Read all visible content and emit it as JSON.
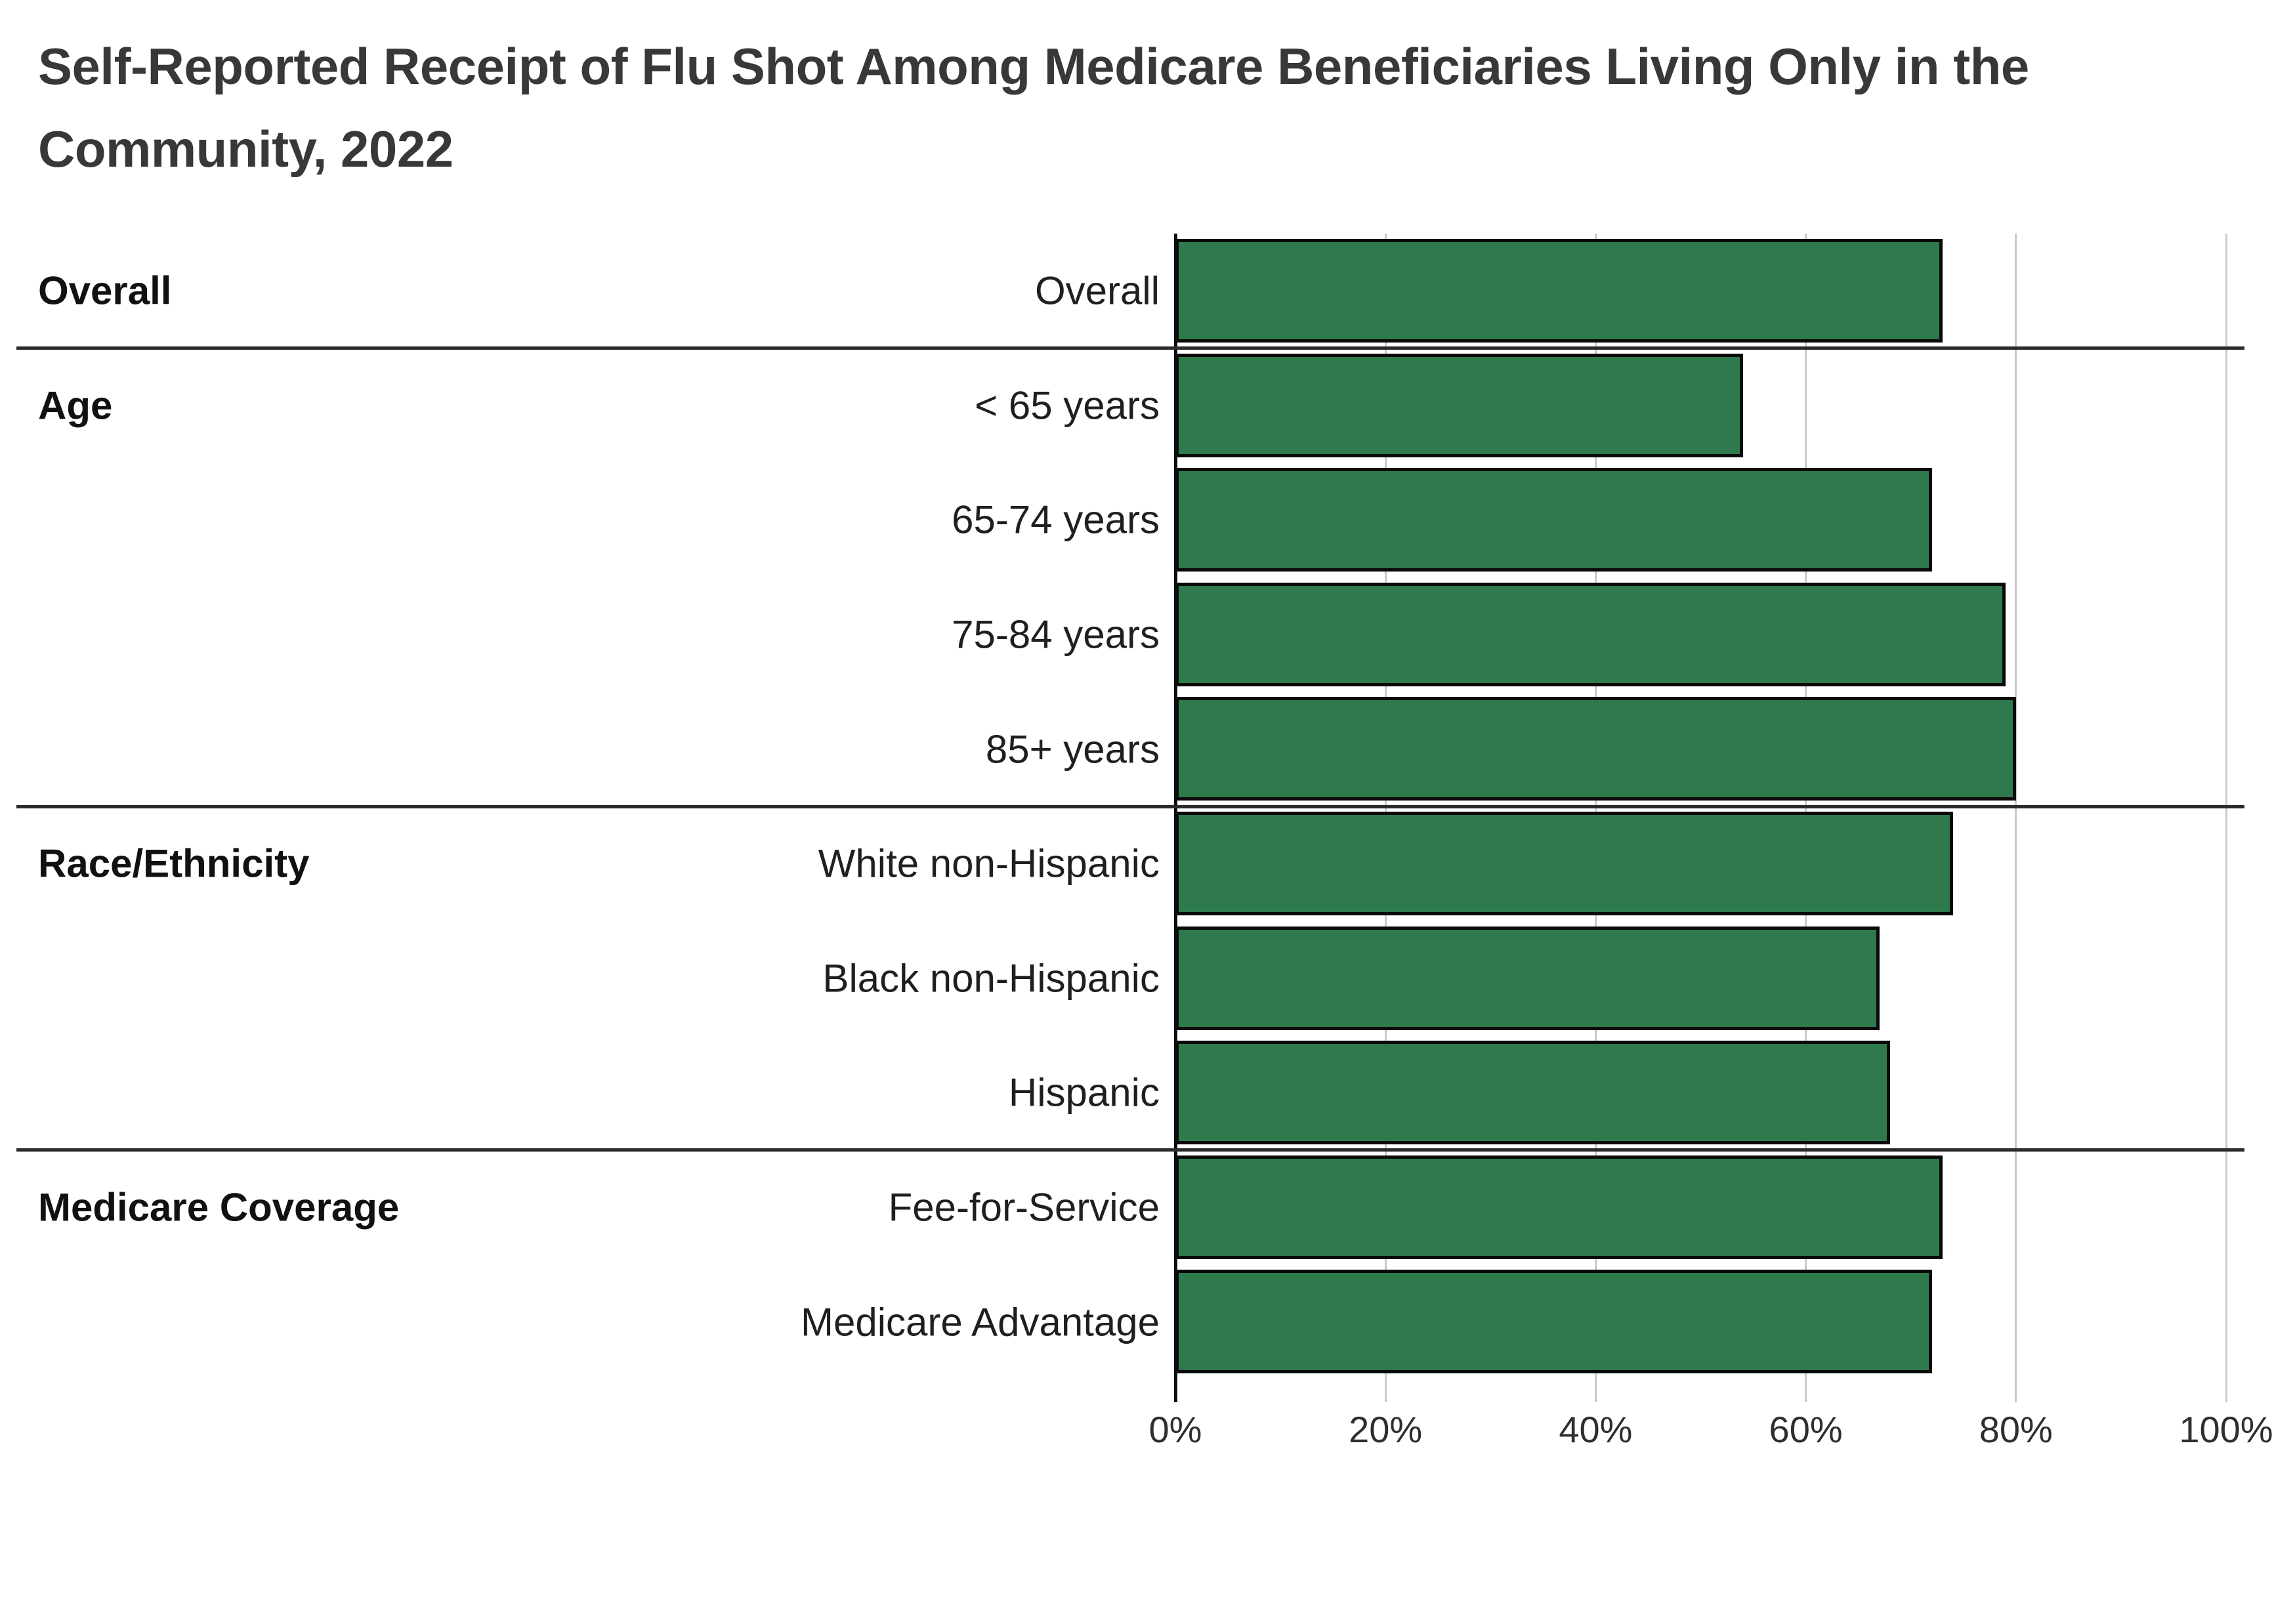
{
  "title": "Self-Reported Receipt of Flu Shot Among Medicare Beneficiaries Living Only in the Community, 2022",
  "chart_data": {
    "type": "bar",
    "orientation": "horizontal",
    "title": "Self-Reported Receipt of Flu Shot Among Medicare Beneficiaries Living Only in the Community, 2022",
    "xlabel": "",
    "ylabel": "",
    "xlim": [
      0,
      100
    ],
    "grid": true,
    "unit": "%",
    "bar_color": "#2E7A4D",
    "bar_border_color": "#0a0a0a",
    "gridline_color": "#c9c9c9",
    "zero_axis_color": "#0d0d0d",
    "x_ticks": [
      {
        "value": 0,
        "label": "0%"
      },
      {
        "value": 20,
        "label": "20%"
      },
      {
        "value": 40,
        "label": "40%"
      },
      {
        "value": 60,
        "label": "60%"
      },
      {
        "value": 80,
        "label": "80%"
      },
      {
        "value": 100,
        "label": "100%"
      }
    ],
    "groups": [
      {
        "label": "Overall",
        "rows": [
          {
            "label": "Overall",
            "value": 73
          }
        ]
      },
      {
        "label": "Age",
        "rows": [
          {
            "label": "< 65 years",
            "value": 54
          },
          {
            "label": "65-74 years",
            "value": 72
          },
          {
            "label": "75-84 years",
            "value": 79
          },
          {
            "label": "85+ years",
            "value": 80
          }
        ]
      },
      {
        "label": "Race/Ethnicity",
        "rows": [
          {
            "label": "White non-Hispanic",
            "value": 74
          },
          {
            "label": "Black non-Hispanic",
            "value": 67
          },
          {
            "label": "Hispanic",
            "value": 68
          }
        ]
      },
      {
        "label": "Medicare Coverage",
        "rows": [
          {
            "label": "Fee-for-Service",
            "value": 73
          },
          {
            "label": "Medicare Advantage",
            "value": 72
          }
        ]
      }
    ]
  }
}
